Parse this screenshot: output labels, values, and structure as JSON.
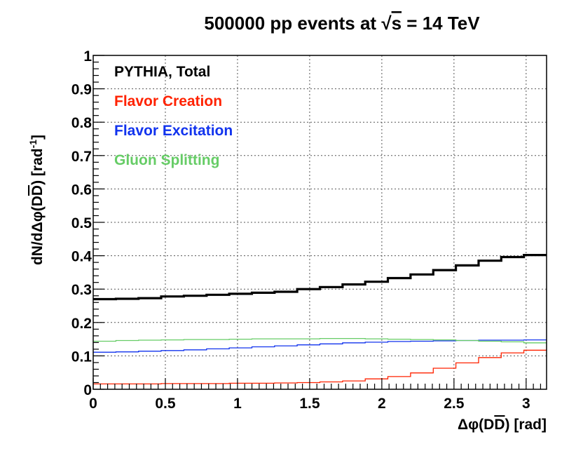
{
  "chart_data": {
    "type": "line",
    "title": "500000 pp events at √s = 14 TeV",
    "title_parts": {
      "pre": "500000 pp events at ",
      "sqrt": "√",
      "s": "s",
      "post": " = 14 TeV"
    },
    "xlabel": "Δφ(DD̄)  [rad]",
    "xlabel_parts": {
      "pre": "Δφ(D",
      "bar": "D",
      "post": ")  [rad]"
    },
    "ylabel": "dN/dΔφ(DD̄) [rad⁻¹]",
    "ylabel_parts": {
      "pre": "dN/dΔφ(D",
      "bar": "D",
      "mid": ") [rad",
      "sup": "-1",
      "post": "]"
    },
    "xlim": [
      0,
      3.14159
    ],
    "ylim": [
      0,
      1
    ],
    "xticks": [
      0,
      0.5,
      1,
      1.5,
      2,
      2.5,
      3
    ],
    "xtick_labels": [
      "0",
      "0.5",
      "1",
      "1.5",
      "2",
      "2.5",
      "3"
    ],
    "yticks": [
      0,
      0.1,
      0.2,
      0.3,
      0.4,
      0.5,
      0.6,
      0.7,
      0.8,
      0.9,
      1
    ],
    "ytick_labels": [
      "0",
      "0.1",
      "0.2",
      "0.3",
      "0.4",
      "0.5",
      "0.6",
      "0.7",
      "0.8",
      "0.9",
      "1"
    ],
    "grid": true,
    "bin_edges": [
      0,
      0.1571,
      0.3142,
      0.4712,
      0.6283,
      0.7854,
      0.9425,
      1.0996,
      1.2566,
      1.4137,
      1.5708,
      1.7279,
      1.885,
      2.042,
      2.1991,
      2.3562,
      2.5133,
      2.6704,
      2.8274,
      2.9845,
      3.1416
    ],
    "series": [
      {
        "name": "PYTHIA, Total",
        "color": "#000000",
        "width": 3.2,
        "values": [
          0.27,
          0.271,
          0.273,
          0.278,
          0.28,
          0.283,
          0.286,
          0.289,
          0.292,
          0.3,
          0.306,
          0.314,
          0.322,
          0.333,
          0.344,
          0.357,
          0.371,
          0.385,
          0.396,
          0.402
        ]
      },
      {
        "name": "Flavor Creation",
        "color": "#ff2200",
        "width": 1.3,
        "values": [
          0.016,
          0.016,
          0.016,
          0.017,
          0.017,
          0.017,
          0.018,
          0.018,
          0.019,
          0.02,
          0.022,
          0.025,
          0.031,
          0.038,
          0.049,
          0.063,
          0.079,
          0.095,
          0.109,
          0.117
        ]
      },
      {
        "name": "Flavor Excitation",
        "color": "#1133ee",
        "width": 1.3,
        "values": [
          0.111,
          0.112,
          0.114,
          0.116,
          0.118,
          0.121,
          0.124,
          0.127,
          0.13,
          0.133,
          0.136,
          0.139,
          0.141,
          0.143,
          0.144,
          0.145,
          0.146,
          0.147,
          0.147,
          0.148
        ]
      },
      {
        "name": "Gluon Splitting",
        "color": "#66cc66",
        "width": 1.3,
        "values": [
          0.144,
          0.146,
          0.147,
          0.148,
          0.149,
          0.149,
          0.15,
          0.151,
          0.151,
          0.151,
          0.152,
          0.152,
          0.151,
          0.15,
          0.149,
          0.148,
          0.146,
          0.144,
          0.142,
          0.139
        ]
      }
    ],
    "legend": [
      {
        "label": "PYTHIA, Total",
        "color": "#000000"
      },
      {
        "label": "Flavor Creation",
        "color": "#ff2200"
      },
      {
        "label": "Flavor Excitation",
        "color": "#1133ee"
      },
      {
        "label": "Gluon Splitting",
        "color": "#66cc66"
      }
    ],
    "legend_position": "top-left"
  }
}
